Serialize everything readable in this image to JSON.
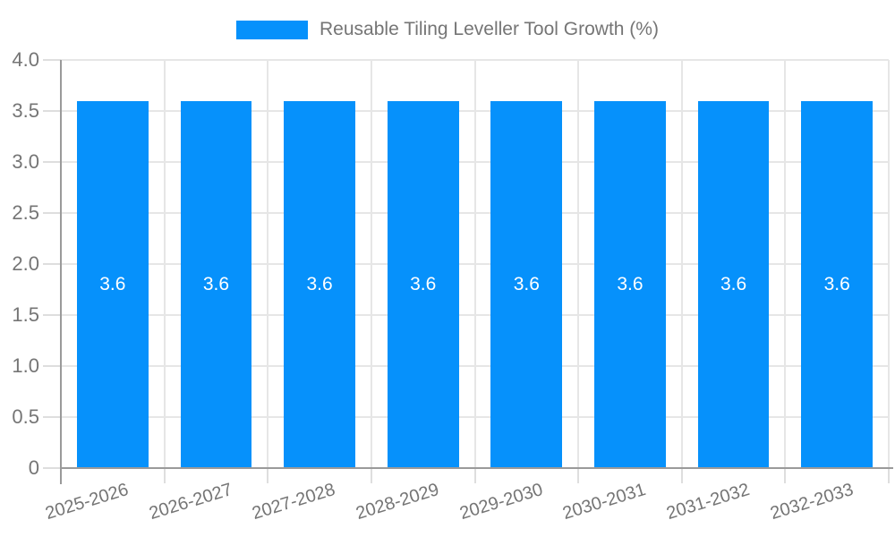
{
  "legend": {
    "label": "Reusable Tiling Leveller Tool Growth (%)"
  },
  "chart_data": {
    "type": "bar",
    "title": "Reusable Tiling Leveller Tool Growth (%)",
    "categories": [
      "2025-2026",
      "2026-2027",
      "2027-2028",
      "2028-2029",
      "2029-2030",
      "2030-2031",
      "2031-2032",
      "2032-2033"
    ],
    "values": [
      3.6,
      3.6,
      3.6,
      3.6,
      3.6,
      3.6,
      3.6,
      3.6
    ],
    "bar_labels": [
      "3.6",
      "3.6",
      "3.6",
      "3.6",
      "3.6",
      "3.6",
      "3.6",
      "3.6"
    ],
    "xlabel": "",
    "ylabel": "",
    "ylim": [
      0,
      4.0
    ],
    "yticks": [
      "0",
      "0.5",
      "1.0",
      "1.5",
      "2.0",
      "2.5",
      "3.0",
      "3.5",
      "4.0"
    ],
    "grid": "horizontal gridlines at 0.5 steps, vertical gridlines at category boundaries",
    "legend_position": "top-center",
    "bar_label_position": "inside-center",
    "colors": {
      "bar": "#0691fb",
      "axis_line": "#9a9a9a",
      "gridline": "#e6e6e6",
      "tick_label": "#757575",
      "bar_label": "#ffffff",
      "background": "#ffffff"
    }
  }
}
